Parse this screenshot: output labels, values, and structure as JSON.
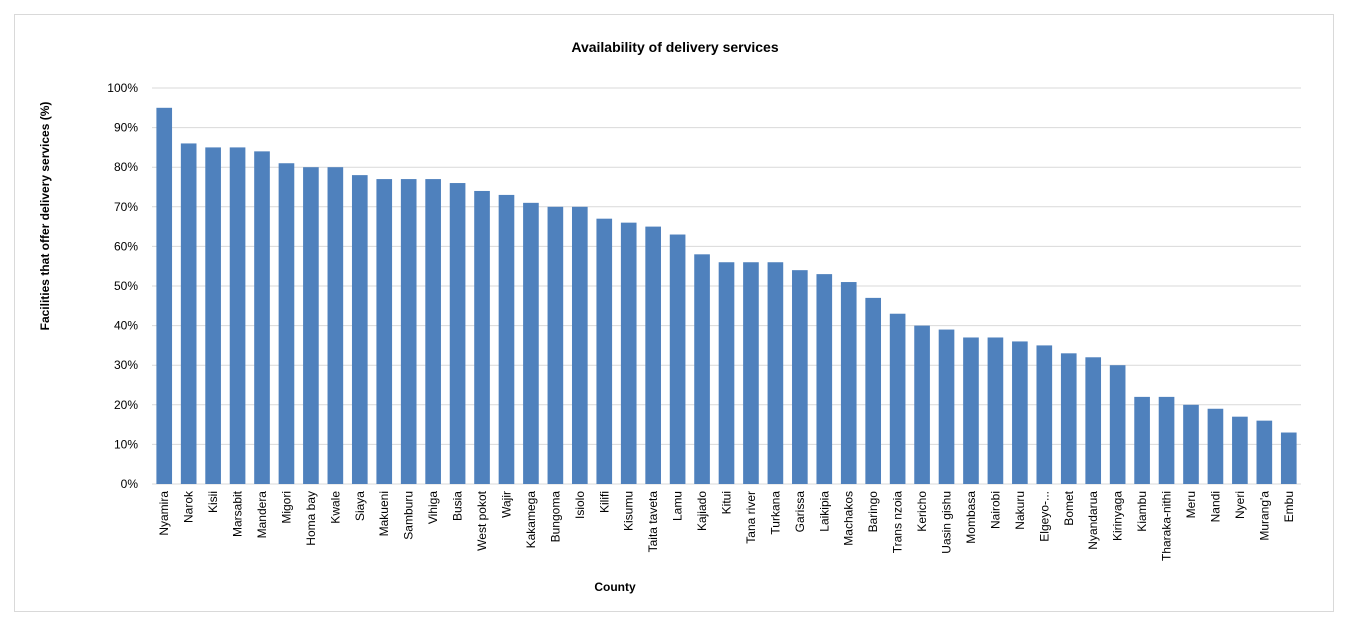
{
  "chart_data": {
    "type": "bar",
    "title": "Availability of delivery services",
    "xlabel": "County",
    "ylabel": "Facilities that offer delivery services (%)",
    "ylim": [
      0,
      100
    ],
    "yticks": [
      "0%",
      "10%",
      "20%",
      "30%",
      "40%",
      "50%",
      "60%",
      "70%",
      "80%",
      "90%",
      "100%"
    ],
    "grid": true,
    "bar_color": "#4F81BD",
    "categories": [
      "Nyamira",
      "Narok",
      "Kisii",
      "Marsabit",
      "Mandera",
      "Migori",
      "Homa bay",
      "Kwale",
      "Siaya",
      "Makueni",
      "Samburu",
      "Vihiga",
      "Busia",
      "West pokot",
      "Wajir",
      "Kakamega",
      "Bungoma",
      "Isiolo",
      "Kilifi",
      "Kisumu",
      "Taita taveta",
      "Lamu",
      "Kajiado",
      "Kitui",
      "Tana river",
      "Turkana",
      "Garissa",
      "Laikipia",
      "Machakos",
      "Baringo",
      "Trans nzoia",
      "Kericho",
      "Uasin gishu",
      "Mombasa",
      "Nairobi",
      "Nakuru",
      "Elgeyo-...",
      "Bomet",
      "Nyandarua",
      "Kirinyaga",
      "Kiambu",
      "Tharaka-nithi",
      "Meru",
      "Nandi",
      "Nyeri",
      "Murang'a",
      "Embu"
    ],
    "values": [
      95,
      86,
      85,
      85,
      84,
      81,
      80,
      80,
      78,
      77,
      77,
      77,
      76,
      74,
      73,
      71,
      70,
      70,
      67,
      66,
      65,
      63,
      58,
      56,
      56,
      56,
      54,
      53,
      51,
      47,
      43,
      40,
      39,
      37,
      37,
      36,
      35,
      33,
      32,
      30,
      22,
      22,
      20,
      19,
      17,
      16,
      13
    ]
  }
}
